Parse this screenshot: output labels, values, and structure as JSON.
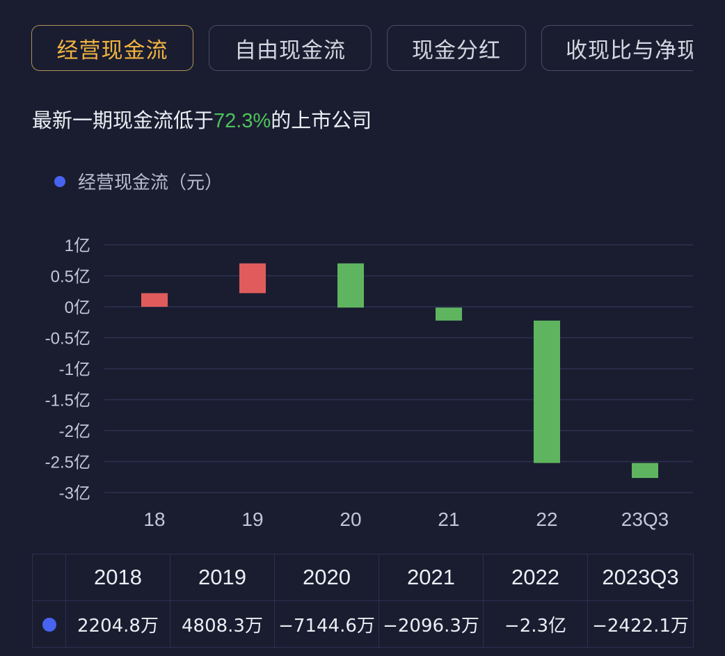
{
  "tabs": [
    {
      "label": "经营现金流",
      "active": true
    },
    {
      "label": "自由现金流",
      "active": false
    },
    {
      "label": "现金分红",
      "active": false
    },
    {
      "label": "收现比与净现",
      "active": false
    }
  ],
  "headline": {
    "prefix": "最新一期现金流低于",
    "percent": "72.3%",
    "suffix": "的上市公司"
  },
  "legend": {
    "label": "经营现金流（元）"
  },
  "colors": {
    "positive": "#e05c5c",
    "negative": "#5fb55f",
    "grid": "#2c3150",
    "legend_dot": "#4763f0",
    "accent_tab": "#f3b440",
    "highlight_green": "#4ec25a"
  },
  "chart_data": {
    "type": "bar",
    "subtype": "waterfall",
    "categories": [
      "18",
      "19",
      "20",
      "21",
      "22",
      "23Q3"
    ],
    "values": [
      0.22,
      0.481,
      -0.714,
      -0.21,
      -2.3,
      -0.242
    ],
    "y_ticks": [
      1,
      0.5,
      0,
      -0.5,
      -1,
      -1.5,
      -2,
      -2.5,
      -3
    ],
    "y_tick_labels": [
      "1亿",
      "0.5亿",
      "0亿",
      "-0.5亿",
      "-1亿",
      "-1.5亿",
      "-2亿",
      "-2.5亿",
      "-3亿"
    ],
    "ylim": [
      -3,
      1
    ],
    "units": "亿元",
    "grid": true,
    "legend_position": "top-left"
  },
  "table": {
    "headers": [
      "2018",
      "2019",
      "2020",
      "2021",
      "2022",
      "2023Q3"
    ],
    "values": [
      "2204.8万",
      "4808.3万",
      "−7144.6万",
      "−2096.3万",
      "−2.3亿",
      "−2422.1万"
    ]
  }
}
